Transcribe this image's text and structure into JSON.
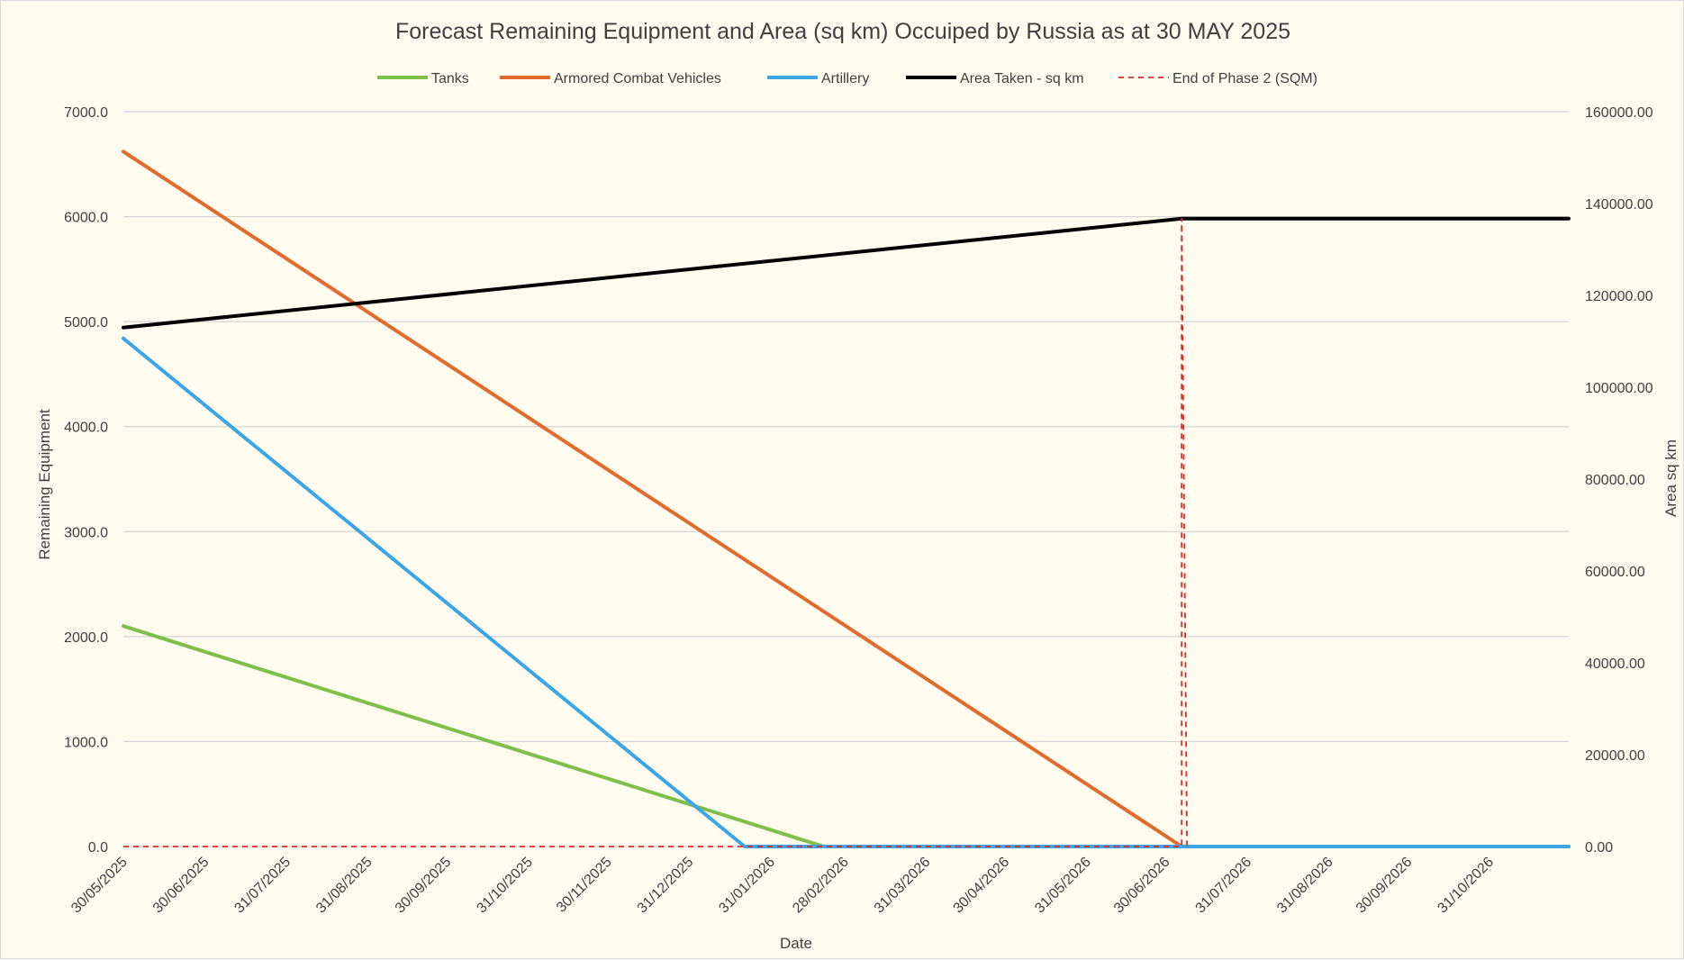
{
  "chart_data": {
    "type": "line",
    "title": "Forecast Remaining Equipment and Area (sq km) Occuiped by Russia as at 30 MAY 2025",
    "xlabel": "Date",
    "ylabel": "Remaining Equipment",
    "y2label": "Area sq km",
    "ylim": [
      0,
      7000
    ],
    "y2lim": [
      0,
      160000
    ],
    "xlim": [
      "2025-05-30",
      "2026-11-30"
    ],
    "y_ticks": [
      "0.0",
      "1000.0",
      "2000.0",
      "3000.0",
      "4000.0",
      "5000.0",
      "6000.0",
      "7000.0"
    ],
    "y2_ticks": [
      "0.00",
      "20000.00",
      "40000.00",
      "60000.00",
      "80000.00",
      "100000.00",
      "120000.00",
      "140000.00",
      "160000.00"
    ],
    "x_ticks": [
      {
        "date": "2025-05-30",
        "label": "30/05/2025"
      },
      {
        "date": "2025-06-30",
        "label": "30/06/2025"
      },
      {
        "date": "2025-07-31",
        "label": "31/07/2025"
      },
      {
        "date": "2025-08-31",
        "label": "31/08/2025"
      },
      {
        "date": "2025-09-30",
        "label": "30/09/2025"
      },
      {
        "date": "2025-10-31",
        "label": "31/10/2025"
      },
      {
        "date": "2025-11-30",
        "label": "30/11/2025"
      },
      {
        "date": "2025-12-31",
        "label": "31/12/2025"
      },
      {
        "date": "2026-01-31",
        "label": "31/01/2026"
      },
      {
        "date": "2026-02-28",
        "label": "28/02/2026"
      },
      {
        "date": "2026-03-31",
        "label": "31/03/2026"
      },
      {
        "date": "2026-04-30",
        "label": "30/04/2026"
      },
      {
        "date": "2026-05-31",
        "label": "31/05/2026"
      },
      {
        "date": "2026-06-30",
        "label": "30/06/2026"
      },
      {
        "date": "2026-07-31",
        "label": "31/07/2026"
      },
      {
        "date": "2026-08-31",
        "label": "31/08/2026"
      },
      {
        "date": "2026-09-30",
        "label": "30/09/2026"
      },
      {
        "date": "2026-10-31",
        "label": "31/10/2026"
      }
    ],
    "grid": true,
    "legend_position": "top",
    "series": [
      {
        "name": "Tanks",
        "axis": "left",
        "color": "#7ebf4a",
        "style": "solid",
        "points": [
          [
            "2025-05-30",
            2100
          ],
          [
            "2026-02-20",
            0
          ],
          [
            "2026-11-30",
            0
          ]
        ]
      },
      {
        "name": "Armored Combat Vehicles",
        "axis": "left",
        "color": "#e06b2d",
        "style": "solid",
        "points": [
          [
            "2025-05-30",
            6620
          ],
          [
            "2026-07-06",
            0
          ],
          [
            "2026-11-30",
            0
          ]
        ]
      },
      {
        "name": "Artillery",
        "axis": "left",
        "color": "#3aa7e4",
        "style": "solid",
        "points": [
          [
            "2025-05-30",
            4840
          ],
          [
            "2026-01-21",
            0
          ],
          [
            "2026-11-30",
            0
          ]
        ]
      },
      {
        "name": "Area Taken - sq km",
        "axis": "right",
        "color": "#000000",
        "style": "solid",
        "points": [
          [
            "2025-05-30",
            113000
          ],
          [
            "2026-07-06",
            136700
          ],
          [
            "2026-11-30",
            136700
          ]
        ]
      },
      {
        "name": "End of Phase 2 (SQM)",
        "axis": "right",
        "color": "#e0282b",
        "style": "dashed",
        "points": [
          [
            "2025-05-30",
            0
          ],
          [
            "2026-07-06",
            0
          ],
          [
            "2026-07-06",
            136700
          ],
          [
            "2026-07-08",
            0
          ]
        ]
      }
    ]
  }
}
